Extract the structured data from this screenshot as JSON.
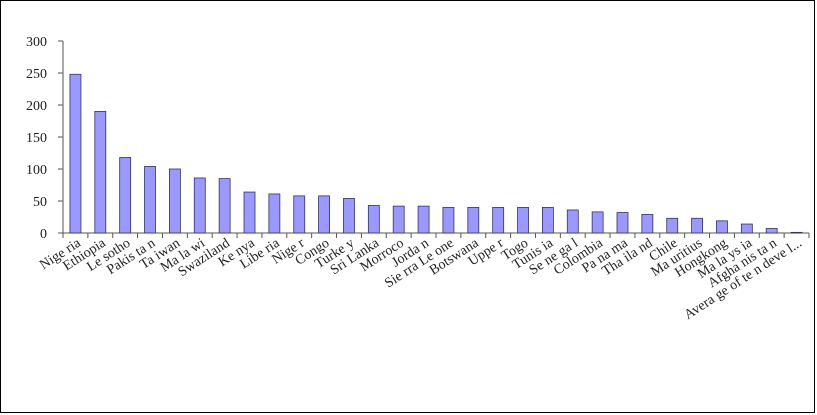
{
  "chart_data": {
    "type": "bar",
    "categories": [
      "Nigeria",
      "Ethiopia",
      "Lesotho",
      "Pakistan",
      "Taiwan",
      "Malawi",
      "Swaziland",
      "Kenya",
      "Liberia",
      "Niger",
      "Congo",
      "Turkey",
      "Srilanka",
      "Morroco",
      "Jordan",
      "Sierra Leone",
      "Botswana",
      "Upper",
      "Togo",
      "Tunisia",
      "Senegal",
      "Colombia",
      "Panama",
      "Thailand",
      "Chile",
      "Mauritius",
      "Hongkong",
      "Malaysia",
      "Afghanistan",
      "Average of ten devel..."
    ],
    "display_labels": [
      "Nige ria",
      "Ethiopia",
      "Le sotho",
      "Pakis ta n",
      "Ta iwan",
      "Ma la wi",
      "Swaziland",
      "Ke nya",
      "Libe ria",
      "Nige r",
      "Congo",
      "Turke y",
      "Sri Lanka",
      "Morroco",
      "Jorda n",
      "Sie rra Le one",
      "Botswana",
      "Uppe r",
      "Togo",
      "Tunis ia",
      "Se ne ga l",
      "Colombia",
      "Pa na ma",
      "Tha ila nd",
      "Chile",
      "Ma uritius",
      "Hongkong",
      "Ma la ys ia",
      "Afgha nis ta n",
      "Avera ge of te n deve l..."
    ],
    "values": [
      248,
      190,
      118,
      104,
      100,
      86,
      85,
      64,
      61,
      58,
      58,
      54,
      43,
      42,
      42,
      40,
      40,
      40,
      40,
      40,
      36,
      33,
      32,
      29,
      23,
      23,
      19,
      14,
      7,
      1
    ],
    "ylim": [
      0,
      300
    ],
    "yticks": [
      0,
      50,
      100,
      150,
      200,
      250,
      300
    ],
    "title": "",
    "xlabel": "",
    "ylabel": "",
    "grid": false,
    "legend": "none",
    "bar_color": "#9999ff",
    "bar_edge_color": "#333366"
  }
}
